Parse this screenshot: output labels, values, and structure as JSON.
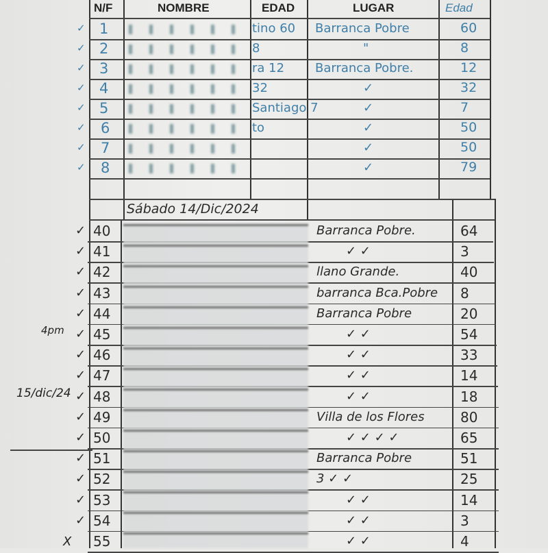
{
  "headers": {
    "nf": "N/F",
    "nombre": "NOMBRE",
    "edad": "EDAD",
    "lugar": "LUGAR",
    "edad2": "Edad"
  },
  "ink_colors": {
    "top": "#3f7fa8",
    "bottom": "#2a2a2a"
  },
  "top_rows": [
    {
      "nf": "1",
      "edad": "tino 60",
      "lugar": "Barranca Pobre",
      "edad2": "60"
    },
    {
      "nf": "2",
      "edad": "8",
      "lugar": "\"",
      "edad2": "8"
    },
    {
      "nf": "3",
      "edad": "ra 12",
      "lugar": "Barranca Pobre.",
      "edad2": "12"
    },
    {
      "nf": "4",
      "edad": "32",
      "lugar": "✓",
      "edad2": "32"
    },
    {
      "nf": "5",
      "edad": "Santiago 7",
      "lugar": "✓",
      "edad2": "7"
    },
    {
      "nf": "6",
      "edad": "to",
      "lugar": "✓",
      "edad2": "50"
    },
    {
      "nf": "7",
      "edad": "",
      "lugar": "✓",
      "edad2": "50"
    },
    {
      "nf": "8",
      "edad": "",
      "lugar": "✓",
      "edad2": "79"
    }
  ],
  "date_heading": "Sábado 14/Dic/2024",
  "bottom_rows": [
    {
      "nf": "40",
      "lugar": "Barranca Pobre.",
      "edad2": "64"
    },
    {
      "nf": "41",
      "lugar": "✓   ✓",
      "edad2": "3"
    },
    {
      "nf": "42",
      "lugar": "llano Grande.",
      "edad2": "40"
    },
    {
      "nf": "43",
      "lugar": "barranca Bca.Pobre",
      "edad2": "8"
    },
    {
      "nf": "44",
      "lugar": "Barranca Pobre",
      "edad2": "20"
    },
    {
      "nf": "45",
      "lugar": "✓   ✓",
      "edad2": "54"
    },
    {
      "nf": "46",
      "lugar": "✓   ✓",
      "edad2": "33"
    },
    {
      "nf": "47",
      "lugar": "✓   ✓",
      "edad2": "14"
    },
    {
      "nf": "48",
      "lugar": "✓   ✓",
      "edad2": "18"
    },
    {
      "nf": "49",
      "lugar": "Villa de los Flores",
      "edad2": "80"
    },
    {
      "nf": "50",
      "lugar": "✓ ✓ ✓ ✓",
      "edad2": "65"
    },
    {
      "nf": "51",
      "lugar": "Barranca Pobre",
      "edad2": "51"
    },
    {
      "nf": "52",
      "lugar": "3   ✓   ✓",
      "edad2": "25"
    },
    {
      "nf": "53",
      "lugar": "✓   ✓",
      "edad2": "14"
    },
    {
      "nf": "54",
      "lugar": "✓   ✓",
      "edad2": "3"
    },
    {
      "nf": "55",
      "lugar": "✓   ✓",
      "edad2": "4"
    }
  ],
  "margin_notes": {
    "time": "4pm",
    "date": "15/dic/24",
    "mark_x": "X"
  }
}
